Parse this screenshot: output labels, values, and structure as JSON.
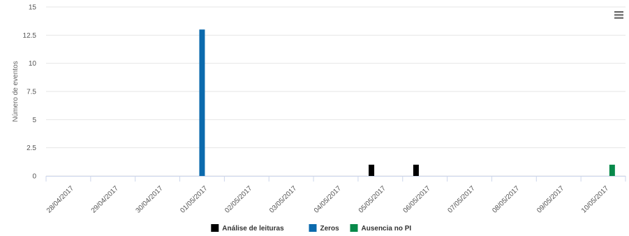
{
  "chart_data": {
    "type": "bar",
    "title": "",
    "xlabel": "",
    "ylabel": "Número de eventos",
    "ylim": [
      0,
      15
    ],
    "yticks": [
      "0",
      "2.5",
      "5",
      "7.5",
      "10",
      "12.5",
      "15"
    ],
    "ytick_values": [
      0,
      2.5,
      5,
      7.5,
      10,
      12.5,
      15
    ],
    "categories": [
      "28/04/2017",
      "29/04/2017",
      "30/04/2017",
      "01/05/2017",
      "02/05/2017",
      "03/05/2017",
      "04/05/2017",
      "05/05/2017",
      "06/05/2017",
      "07/05/2017",
      "08/05/2017",
      "09/05/2017",
      "10/05/2017"
    ],
    "series": [
      {
        "name": "Análise de leituras",
        "color": "#000000",
        "values": [
          0,
          0,
          0,
          0,
          0,
          0,
          0,
          1,
          1,
          0,
          0,
          0,
          0
        ]
      },
      {
        "name": "Zeros",
        "color": "#0b6aad",
        "values": [
          0,
          0,
          0,
          13,
          0,
          0,
          0,
          0,
          0,
          0,
          0,
          0,
          0
        ]
      },
      {
        "name": "Ausencia no PI",
        "color": "#07894a",
        "values": [
          0,
          0,
          0,
          0,
          0,
          0,
          0,
          0,
          0,
          0,
          0,
          0,
          1
        ]
      }
    ],
    "grid": true,
    "legend_position": "bottom-center"
  },
  "menu": {
    "icon": "hamburger-menu-icon"
  }
}
